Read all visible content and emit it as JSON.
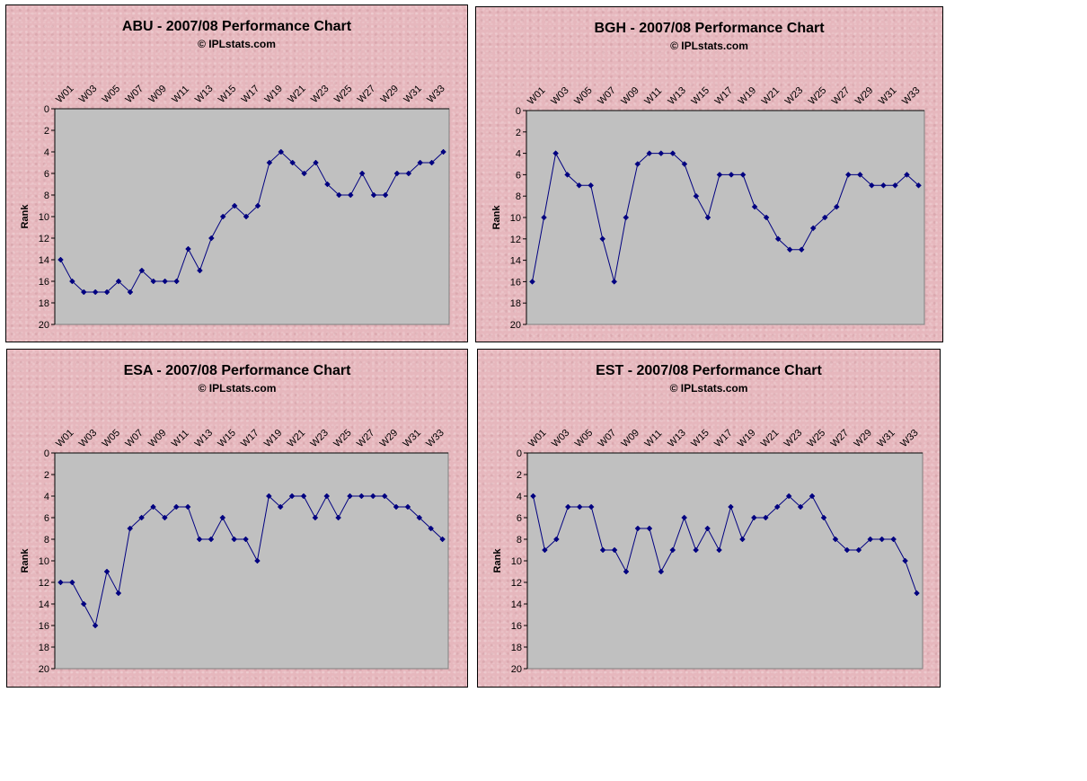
{
  "chart_data": [
    {
      "type": "line",
      "title": "ABU - 2007/08 Performance Chart",
      "subtitle": "© IPLstats.com",
      "xlabel": "",
      "ylabel": "Rank",
      "ylim": [
        0,
        20
      ],
      "y_inverted": true,
      "yticks": [
        0,
        2,
        4,
        6,
        8,
        10,
        12,
        14,
        16,
        18,
        20
      ],
      "xticks": [
        "W01",
        "W03",
        "W05",
        "W07",
        "W09",
        "W11",
        "W13",
        "W15",
        "W17",
        "W19",
        "W21",
        "W23",
        "W25",
        "W27",
        "W29",
        "W31",
        "W33"
      ],
      "categories": [
        "W01",
        "W02",
        "W03",
        "W04",
        "W05",
        "W06",
        "W07",
        "W08",
        "W09",
        "W10",
        "W11",
        "W12",
        "W13",
        "W14",
        "W15",
        "W16",
        "W17",
        "W18",
        "W19",
        "W20",
        "W21",
        "W22",
        "W23",
        "W24",
        "W25",
        "W26",
        "W27",
        "W28",
        "W29",
        "W30",
        "W31",
        "W32",
        "W33",
        "W34"
      ],
      "values": [
        14,
        16,
        17,
        17,
        17,
        16,
        17,
        15,
        16,
        16,
        16,
        13,
        15,
        12,
        10,
        9,
        10,
        9,
        5,
        4,
        5,
        6,
        5,
        7,
        8,
        8,
        6,
        8,
        8,
        6,
        6,
        5,
        5,
        4
      ]
    },
    {
      "type": "line",
      "title": "BGH - 2007/08 Performance Chart",
      "subtitle": "© IPLstats.com",
      "xlabel": "",
      "ylabel": "Rank",
      "ylim": [
        0,
        20
      ],
      "y_inverted": true,
      "yticks": [
        0,
        2,
        4,
        6,
        8,
        10,
        12,
        14,
        16,
        18,
        20
      ],
      "xticks": [
        "W01",
        "W03",
        "W05",
        "W07",
        "W09",
        "W11",
        "W13",
        "W15",
        "W17",
        "W19",
        "W21",
        "W23",
        "W25",
        "W27",
        "W29",
        "W31",
        "W33"
      ],
      "categories": [
        "W01",
        "W02",
        "W03",
        "W04",
        "W05",
        "W06",
        "W07",
        "W08",
        "W09",
        "W10",
        "W11",
        "W12",
        "W13",
        "W14",
        "W15",
        "W16",
        "W17",
        "W18",
        "W19",
        "W20",
        "W21",
        "W22",
        "W23",
        "W24",
        "W25",
        "W26",
        "W27",
        "W28",
        "W29",
        "W30",
        "W31",
        "W32",
        "W33",
        "W34"
      ],
      "values": [
        16,
        10,
        4,
        6,
        7,
        7,
        12,
        16,
        10,
        5,
        4,
        4,
        4,
        5,
        8,
        10,
        6,
        6,
        6,
        9,
        10,
        12,
        13,
        13,
        11,
        10,
        9,
        6,
        6,
        7,
        7,
        7,
        6,
        7
      ]
    },
    {
      "type": "line",
      "title": "ESA - 2007/08 Performance Chart",
      "subtitle": "© IPLstats.com",
      "xlabel": "",
      "ylabel": "Rank",
      "ylim": [
        0,
        20
      ],
      "y_inverted": true,
      "yticks": [
        0,
        2,
        4,
        6,
        8,
        10,
        12,
        14,
        16,
        18,
        20
      ],
      "xticks": [
        "W01",
        "W03",
        "W05",
        "W07",
        "W09",
        "W11",
        "W13",
        "W15",
        "W17",
        "W19",
        "W21",
        "W23",
        "W25",
        "W27",
        "W29",
        "W31",
        "W33"
      ],
      "categories": [
        "W01",
        "W02",
        "W03",
        "W04",
        "W05",
        "W06",
        "W07",
        "W08",
        "W09",
        "W10",
        "W11",
        "W12",
        "W13",
        "W14",
        "W15",
        "W16",
        "W17",
        "W18",
        "W19",
        "W20",
        "W21",
        "W22",
        "W23",
        "W24",
        "W25",
        "W26",
        "W27",
        "W28",
        "W29",
        "W30",
        "W31",
        "W32",
        "W33",
        "W34"
      ],
      "values": [
        12,
        12,
        14,
        16,
        11,
        13,
        7,
        6,
        5,
        6,
        5,
        5,
        8,
        8,
        6,
        8,
        8,
        10,
        4,
        5,
        4,
        4,
        6,
        4,
        6,
        4,
        4,
        4,
        4,
        5,
        5,
        6,
        7,
        8
      ]
    },
    {
      "type": "line",
      "title": "EST - 2007/08 Performance Chart",
      "subtitle": "© IPLstats.com",
      "xlabel": "",
      "ylabel": "Rank",
      "ylim": [
        0,
        20
      ],
      "y_inverted": true,
      "yticks": [
        0,
        2,
        4,
        6,
        8,
        10,
        12,
        14,
        16,
        18,
        20
      ],
      "xticks": [
        "W01",
        "W03",
        "W05",
        "W07",
        "W09",
        "W11",
        "W13",
        "W15",
        "W17",
        "W19",
        "W21",
        "W23",
        "W25",
        "W27",
        "W29",
        "W31",
        "W33"
      ],
      "categories": [
        "W01",
        "W02",
        "W03",
        "W04",
        "W05",
        "W06",
        "W07",
        "W08",
        "W09",
        "W10",
        "W11",
        "W12",
        "W13",
        "W14",
        "W15",
        "W16",
        "W17",
        "W18",
        "W19",
        "W20",
        "W21",
        "W22",
        "W23",
        "W24",
        "W25",
        "W26",
        "W27",
        "W28",
        "W29",
        "W30",
        "W31",
        "W32",
        "W33",
        "W34"
      ],
      "values": [
        4,
        9,
        8,
        5,
        5,
        5,
        9,
        9,
        11,
        7,
        7,
        11,
        9,
        6,
        9,
        7,
        9,
        5,
        8,
        6,
        6,
        5,
        4,
        5,
        4,
        6,
        8,
        9,
        9,
        8,
        8,
        8,
        10,
        13
      ]
    }
  ],
  "colors": {
    "line": "#000080",
    "plot_area": "#c0c0c0",
    "panel_background": "#e6b7bd",
    "text": "#000000"
  }
}
